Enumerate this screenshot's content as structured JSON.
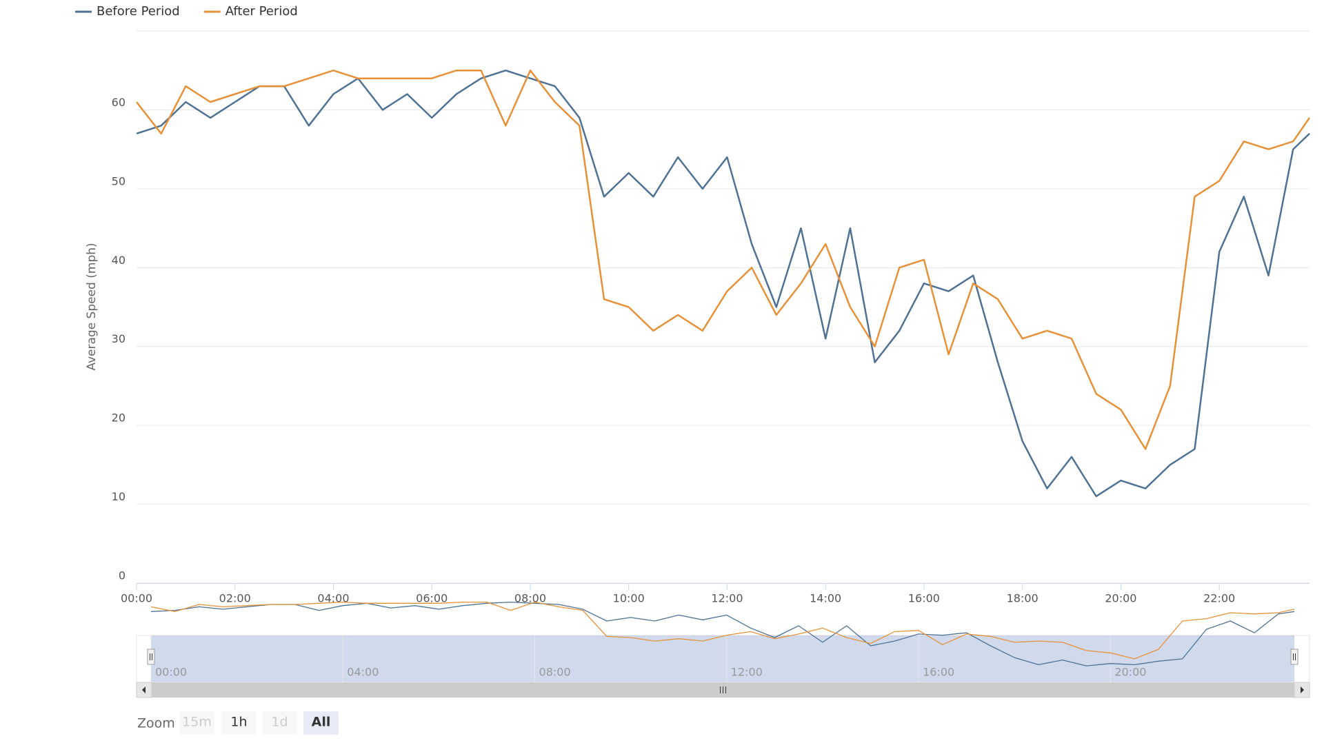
{
  "chart_data": {
    "type": "line",
    "y_axis_label": "Average Speed (mph)",
    "x": [
      "00:00",
      "00:30",
      "01:00",
      "01:30",
      "02:00",
      "02:30",
      "03:00",
      "03:30",
      "04:00",
      "04:30",
      "05:00",
      "05:30",
      "06:00",
      "06:30",
      "07:00",
      "07:30",
      "08:00",
      "08:30",
      "09:00",
      "09:30",
      "10:00",
      "10:30",
      "11:00",
      "11:30",
      "12:00",
      "12:30",
      "13:00",
      "13:30",
      "14:00",
      "14:30",
      "15:00",
      "15:30",
      "16:00",
      "16:30",
      "17:00",
      "17:30",
      "18:00",
      "18:30",
      "19:00",
      "19:30",
      "20:00",
      "20:30",
      "21:00",
      "21:30",
      "22:00",
      "22:30",
      "23:00",
      "23:30",
      "23:50"
    ],
    "xlim": [
      "00:00",
      "23:50"
    ],
    "xticks": [
      "00:00",
      "02:00",
      "04:00",
      "06:00",
      "08:00",
      "10:00",
      "12:00",
      "14:00",
      "16:00",
      "18:00",
      "20:00",
      "22:00"
    ],
    "ylim": [
      0,
      70
    ],
    "yticks": [
      0,
      10,
      20,
      30,
      40,
      50,
      60
    ],
    "grid": true,
    "legend": "top-left",
    "series": [
      {
        "name": "Before Period",
        "color": "#4e7194",
        "values": [
          57,
          58,
          61,
          59,
          61,
          63,
          63,
          58,
          62,
          64,
          60,
          62,
          59,
          62,
          64,
          65,
          64,
          63,
          59,
          49,
          52,
          49,
          54,
          50,
          54,
          43,
          35,
          45,
          31,
          45,
          28,
          32,
          38,
          37,
          39,
          28,
          18,
          12,
          16,
          11,
          13,
          12,
          15,
          17,
          42,
          49,
          39,
          55,
          57
        ]
      },
      {
        "name": "After Period",
        "color": "#e69138",
        "values": [
          61,
          57,
          63,
          61,
          62,
          63,
          63,
          64,
          65,
          64,
          64,
          64,
          64,
          65,
          65,
          58,
          65,
          61,
          58,
          36,
          35,
          32,
          34,
          32,
          37,
          40,
          34,
          38,
          43,
          35,
          30,
          40,
          41,
          29,
          38,
          36,
          31,
          32,
          31,
          24,
          22,
          17,
          25,
          49,
          51,
          56,
          55,
          56,
          59
        ]
      }
    ]
  },
  "navigator": {
    "xticks": [
      "00:00",
      "04:00",
      "08:00",
      "12:00",
      "16:00",
      "20:00"
    ]
  },
  "range_selector": {
    "label": "Zoom",
    "buttons": [
      "15m",
      "1h",
      "1d",
      "All"
    ],
    "selected": 3,
    "disabled": [
      0,
      2
    ]
  }
}
